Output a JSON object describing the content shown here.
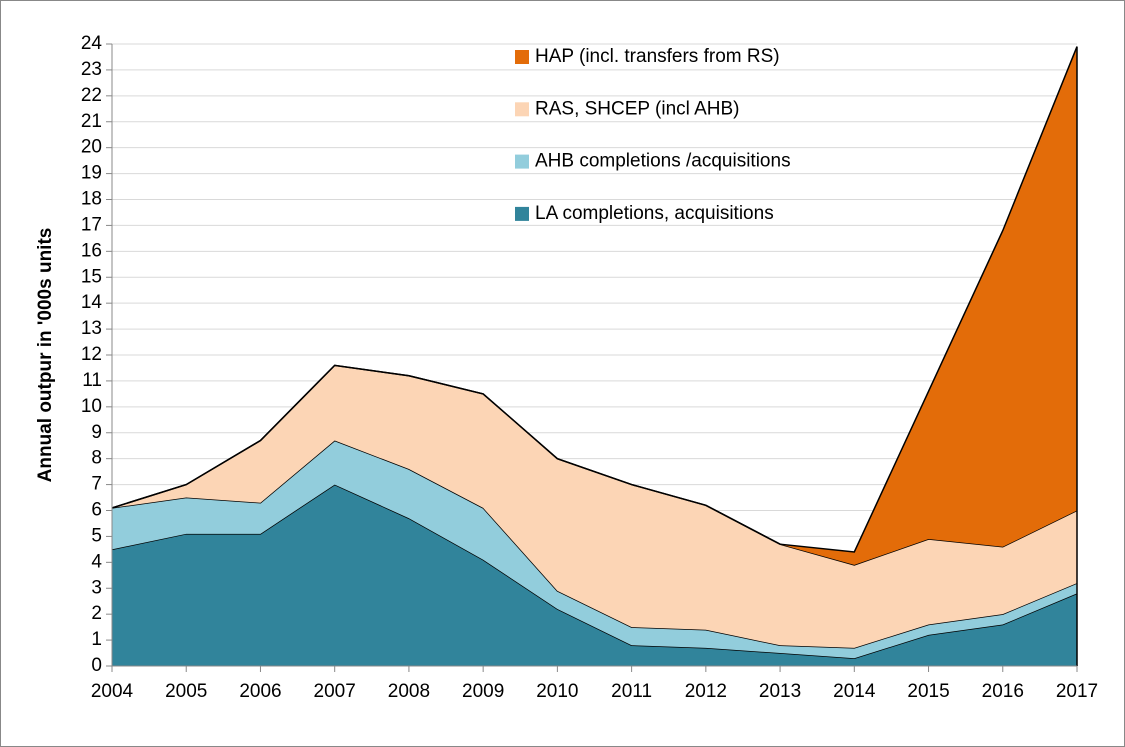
{
  "chart_data": {
    "type": "stacked_area",
    "y_label": "Annual outpur in '000s units",
    "categories": [
      "2004",
      "2005",
      "2006",
      "2007",
      "2008",
      "2009",
      "2010",
      "2011",
      "2012",
      "2013",
      "2014",
      "2015",
      "2016",
      "2017"
    ],
    "series": [
      {
        "name": "LA completions, acquisitions",
        "color": "#31849b",
        "values": [
          4.5,
          5.1,
          5.1,
          7.0,
          5.7,
          4.1,
          2.2,
          0.8,
          0.7,
          0.5,
          0.3,
          1.2,
          1.6,
          2.8
        ]
      },
      {
        "name": "AHB completions /acquisitions",
        "color": "#92cddc",
        "values": [
          1.6,
          1.4,
          1.2,
          1.7,
          1.9,
          2.0,
          0.7,
          0.7,
          0.7,
          0.3,
          0.4,
          0.4,
          0.4,
          0.4
        ]
      },
      {
        "name": "RAS, SHCEP (incl AHB)",
        "color": "#fcd5b5",
        "values": [
          0,
          0.5,
          2.4,
          2.9,
          3.6,
          4.4,
          5.1,
          5.5,
          4.8,
          3.9,
          3.2,
          3.3,
          2.6,
          2.8
        ]
      },
      {
        "name": "HAP (incl. transfers from RS)",
        "color": "#e36c09",
        "values": [
          0,
          0,
          0,
          0,
          0,
          0,
          0,
          0,
          0,
          0,
          0.5,
          5.7,
          12.2,
          17.9
        ]
      }
    ],
    "ylim": [
      0,
      24
    ],
    "yticks": [
      0,
      1,
      2,
      3,
      4,
      5,
      6,
      7,
      8,
      9,
      10,
      11,
      12,
      13,
      14,
      15,
      16,
      17,
      18,
      19,
      20,
      21,
      22,
      23,
      24
    ],
    "grid": true
  }
}
